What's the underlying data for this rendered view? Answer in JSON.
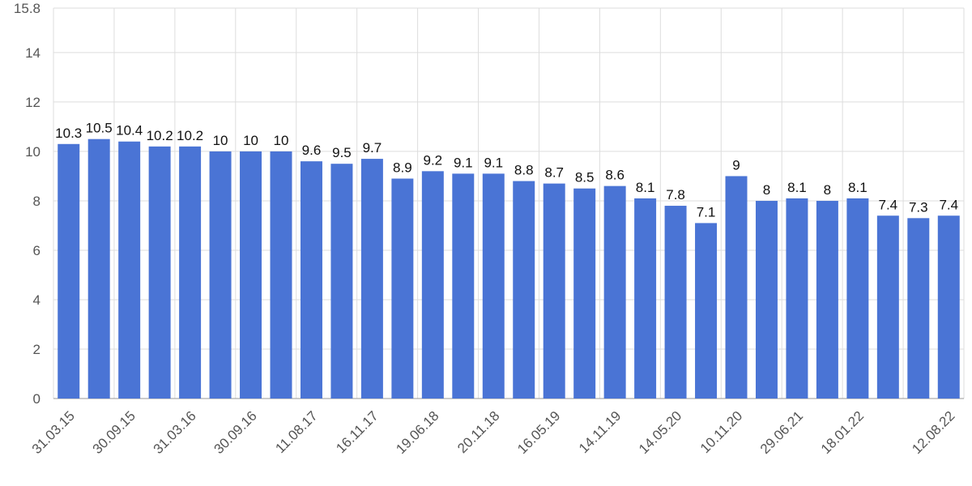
{
  "chart_data": {
    "type": "bar",
    "categories": [
      "31.03.15",
      null,
      "30.09.15",
      null,
      "31.03.16",
      null,
      "30.09.16",
      null,
      "11.08.17",
      null,
      "16.11.17",
      null,
      "19.06.18",
      null,
      "20.11.18",
      null,
      "16.05.19",
      null,
      "14.11.19",
      null,
      "14.05.20",
      null,
      "10.11.20",
      null,
      "29.06.21",
      null,
      "18.01.22",
      null,
      null,
      "12.08.22"
    ],
    "values": [
      10.3,
      10.5,
      10.4,
      10.2,
      10.2,
      10,
      10,
      10,
      9.6,
      9.5,
      9.7,
      8.9,
      9.2,
      9.1,
      9.1,
      8.8,
      8.7,
      8.5,
      8.6,
      8.1,
      7.8,
      7.1,
      9,
      8,
      8.1,
      8,
      8.1,
      7.4,
      7.3,
      7.4
    ],
    "color": "#4a74d5",
    "ylim": [
      0,
      15.8
    ],
    "yticks": [
      0,
      2,
      4,
      6,
      8,
      10,
      12,
      14,
      15.8
    ],
    "grid": true
  }
}
